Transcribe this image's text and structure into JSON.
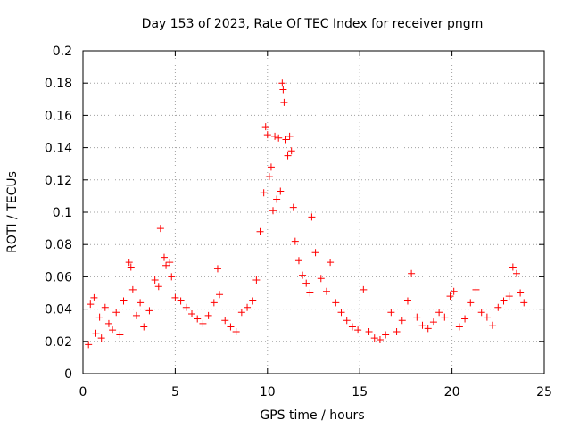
{
  "chart_data": {
    "type": "scatter",
    "title": "Day 153 of 2023, Rate Of TEC Index for receiver pngm",
    "xlabel": "GPS time / hours",
    "ylabel": "ROTI / TECUs",
    "xlim": [
      0,
      25
    ],
    "ylim": [
      0,
      0.2
    ],
    "x_ticks": [
      0,
      5,
      10,
      15,
      20,
      25
    ],
    "x_tick_labels": [
      "0",
      "5",
      "10",
      "15",
      "20",
      "25"
    ],
    "y_ticks": [
      0,
      0.02,
      0.04,
      0.06,
      0.08,
      0.1,
      0.12,
      0.14,
      0.16,
      0.18,
      0.2
    ],
    "y_tick_labels": [
      "0",
      "0.02",
      "0.04",
      "0.06",
      "0.08",
      "0.1",
      "0.12",
      "0.14",
      "0.16",
      "0.18",
      "0.2"
    ],
    "grid": true,
    "marker": "+",
    "series": [
      {
        "name": "ROTI",
        "color": "#ff0000",
        "points": [
          [
            0.3,
            0.018
          ],
          [
            0.4,
            0.043
          ],
          [
            0.6,
            0.047
          ],
          [
            0.7,
            0.025
          ],
          [
            0.9,
            0.035
          ],
          [
            1.0,
            0.022
          ],
          [
            1.2,
            0.041
          ],
          [
            1.4,
            0.031
          ],
          [
            1.6,
            0.027
          ],
          [
            1.8,
            0.038
          ],
          [
            2.0,
            0.024
          ],
          [
            2.2,
            0.045
          ],
          [
            2.5,
            0.069
          ],
          [
            2.6,
            0.066
          ],
          [
            2.7,
            0.052
          ],
          [
            2.9,
            0.036
          ],
          [
            3.1,
            0.044
          ],
          [
            3.3,
            0.029
          ],
          [
            3.6,
            0.039
          ],
          [
            3.9,
            0.058
          ],
          [
            4.1,
            0.054
          ],
          [
            4.2,
            0.09
          ],
          [
            4.4,
            0.072
          ],
          [
            4.5,
            0.067
          ],
          [
            4.7,
            0.069
          ],
          [
            4.8,
            0.06
          ],
          [
            5.0,
            0.047
          ],
          [
            5.3,
            0.045
          ],
          [
            5.6,
            0.041
          ],
          [
            5.9,
            0.037
          ],
          [
            6.2,
            0.034
          ],
          [
            6.5,
            0.031
          ],
          [
            6.8,
            0.036
          ],
          [
            7.1,
            0.044
          ],
          [
            7.3,
            0.065
          ],
          [
            7.4,
            0.049
          ],
          [
            7.7,
            0.033
          ],
          [
            8.0,
            0.029
          ],
          [
            8.3,
            0.026
          ],
          [
            8.6,
            0.038
          ],
          [
            8.9,
            0.041
          ],
          [
            9.2,
            0.045
          ],
          [
            9.4,
            0.058
          ],
          [
            9.6,
            0.088
          ],
          [
            9.8,
            0.112
          ],
          [
            9.9,
            0.153
          ],
          [
            10.0,
            0.148
          ],
          [
            10.1,
            0.122
          ],
          [
            10.2,
            0.128
          ],
          [
            10.3,
            0.101
          ],
          [
            10.4,
            0.147
          ],
          [
            10.5,
            0.108
          ],
          [
            10.6,
            0.146
          ],
          [
            10.7,
            0.113
          ],
          [
            10.8,
            0.18
          ],
          [
            10.85,
            0.176
          ],
          [
            10.9,
            0.168
          ],
          [
            11.0,
            0.145
          ],
          [
            11.1,
            0.135
          ],
          [
            11.2,
            0.147
          ],
          [
            11.3,
            0.138
          ],
          [
            11.4,
            0.103
          ],
          [
            11.5,
            0.082
          ],
          [
            11.7,
            0.07
          ],
          [
            11.9,
            0.061
          ],
          [
            12.1,
            0.056
          ],
          [
            12.3,
            0.05
          ],
          [
            12.4,
            0.097
          ],
          [
            12.6,
            0.075
          ],
          [
            12.9,
            0.059
          ],
          [
            13.2,
            0.051
          ],
          [
            13.4,
            0.069
          ],
          [
            13.7,
            0.044
          ],
          [
            14.0,
            0.038
          ],
          [
            14.3,
            0.033
          ],
          [
            14.6,
            0.029
          ],
          [
            14.9,
            0.027
          ],
          [
            15.2,
            0.052
          ],
          [
            15.5,
            0.026
          ],
          [
            15.8,
            0.022
          ],
          [
            16.1,
            0.021
          ],
          [
            16.4,
            0.024
          ],
          [
            16.7,
            0.038
          ],
          [
            17.0,
            0.026
          ],
          [
            17.3,
            0.033
          ],
          [
            17.6,
            0.045
          ],
          [
            17.8,
            0.062
          ],
          [
            18.1,
            0.035
          ],
          [
            18.4,
            0.03
          ],
          [
            18.7,
            0.028
          ],
          [
            19.0,
            0.032
          ],
          [
            19.3,
            0.038
          ],
          [
            19.6,
            0.035
          ],
          [
            19.9,
            0.048
          ],
          [
            20.1,
            0.051
          ],
          [
            20.4,
            0.029
          ],
          [
            20.7,
            0.034
          ],
          [
            21.0,
            0.044
          ],
          [
            21.3,
            0.052
          ],
          [
            21.6,
            0.038
          ],
          [
            21.9,
            0.035
          ],
          [
            22.2,
            0.03
          ],
          [
            22.5,
            0.041
          ],
          [
            22.8,
            0.045
          ],
          [
            23.1,
            0.048
          ],
          [
            23.3,
            0.066
          ],
          [
            23.5,
            0.062
          ],
          [
            23.7,
            0.05
          ],
          [
            23.9,
            0.044
          ]
        ]
      }
    ]
  }
}
